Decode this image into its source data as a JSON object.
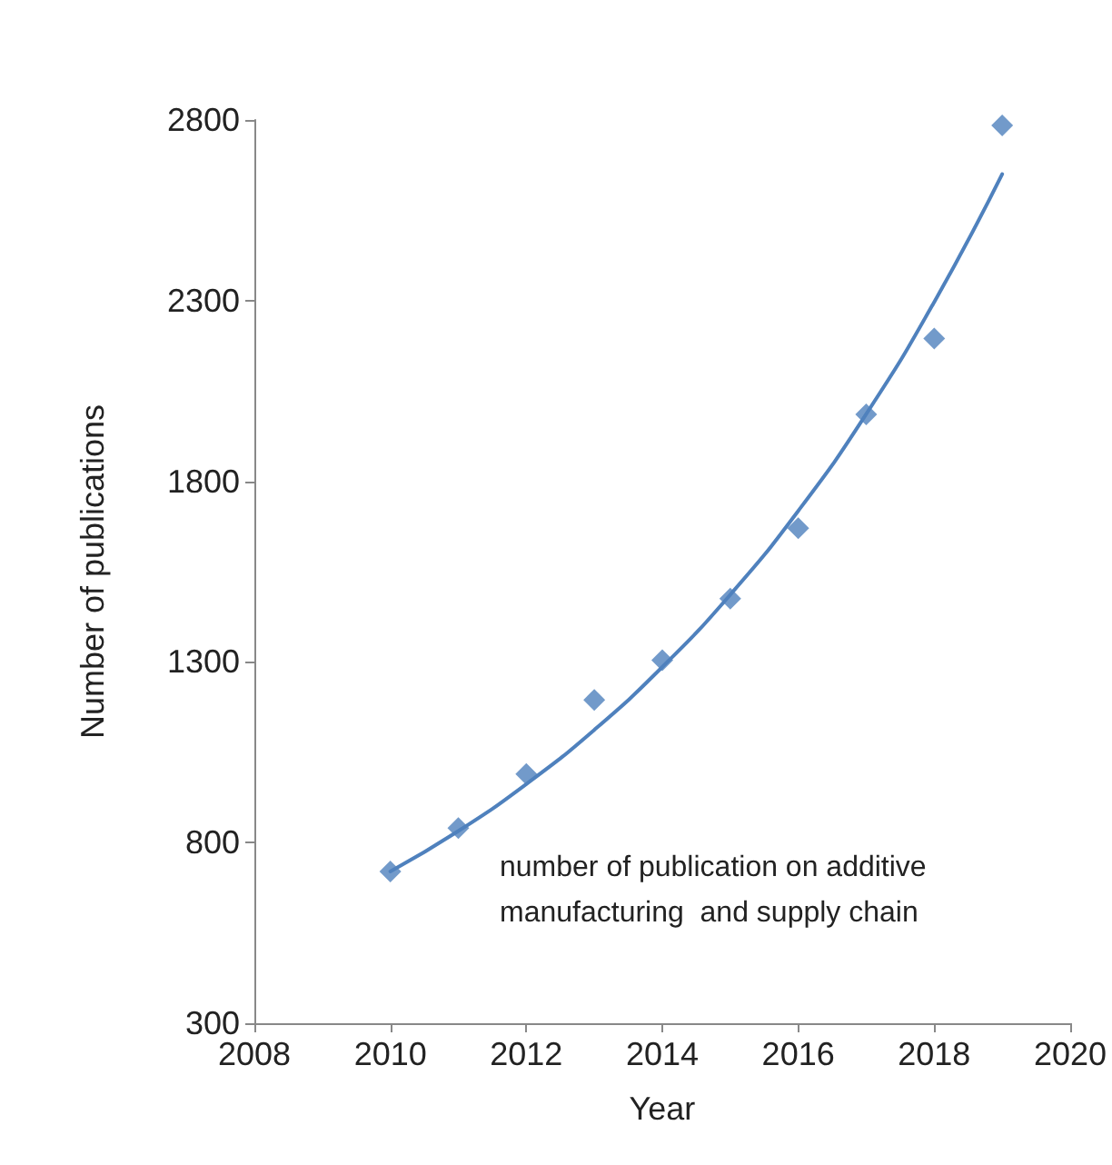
{
  "chart_data": {
    "type": "scatter",
    "xlabel": "Year",
    "ylabel": "Number of publications",
    "annotations": [
      "number of publication on additive\nmanufacturing  and supply chain"
    ],
    "xlim": [
      2008,
      2020
    ],
    "xticks": [
      2008,
      2010,
      2012,
      2014,
      2016,
      2018,
      2020
    ],
    "ylim": [
      300,
      2800
    ],
    "yticks": [
      300,
      800,
      1300,
      1800,
      2300,
      2800
    ],
    "grid": false,
    "marker": "diamond",
    "series": [
      {
        "type": "scatter",
        "color": "#4f81bd",
        "x": [
          2010,
          2011,
          2012,
          2013,
          2014,
          2015,
          2016,
          2017,
          2018,
          2019
        ],
        "values": [
          720,
          840,
          990,
          1195,
          1305,
          1475,
          1670,
          1985,
          2195,
          2785
        ]
      },
      {
        "type": "line",
        "color": "#4f81bd",
        "marker": "none",
        "line_style": "solid",
        "x": [
          2010,
          2011,
          2012,
          2013,
          2014,
          2015,
          2016,
          2017,
          2018,
          2019
        ],
        "values": [
          720,
          832,
          962,
          1112,
          1286,
          1486,
          1718,
          1986,
          2296,
          2650
        ]
      }
    ]
  }
}
